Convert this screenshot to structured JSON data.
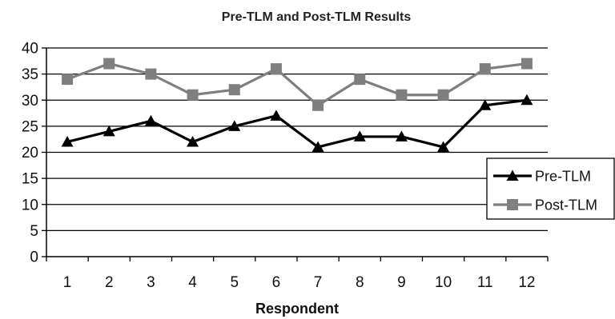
{
  "chart_data": {
    "type": "line",
    "title": "Pre-TLM and Post-TLM Results",
    "xlabel": "Respondent",
    "ylabel": "",
    "categories": [
      "1",
      "2",
      "3",
      "4",
      "5",
      "6",
      "7",
      "8",
      "9",
      "10",
      "11",
      "12"
    ],
    "ylim": [
      0,
      40
    ],
    "yticks": [
      "0",
      "5",
      "10",
      "15",
      "20",
      "25",
      "30",
      "35",
      "40"
    ],
    "grid": "horizontal",
    "legend_position": "right",
    "series": [
      {
        "name": "Pre-TLM",
        "marker": "triangle",
        "color": "#000000",
        "values": [
          22,
          24,
          26,
          22,
          25,
          27,
          21,
          23,
          23,
          21,
          29,
          30
        ]
      },
      {
        "name": "Post-TLM",
        "marker": "square",
        "color": "#7f7f7f",
        "values": [
          34,
          37,
          35,
          31,
          32,
          36,
          29,
          34,
          31,
          31,
          36,
          37
        ]
      }
    ]
  }
}
